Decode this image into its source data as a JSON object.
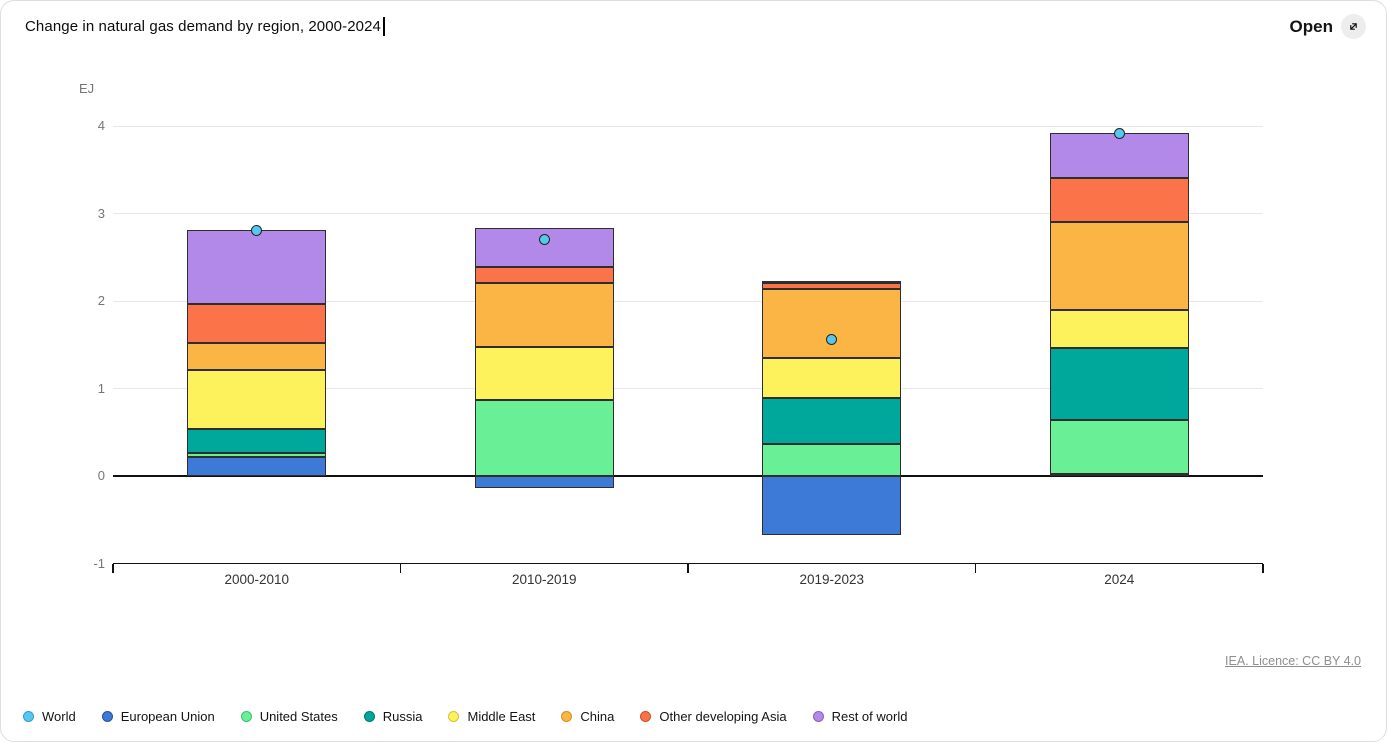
{
  "header": {
    "title": "Change in natural gas demand by region, 2000-2024",
    "open_label": "Open"
  },
  "footer": {
    "licence_label": "IEA. Licence: CC BY 4.0"
  },
  "chart_data": {
    "type": "bar",
    "stacked": true,
    "title": "Change in natural gas demand by region, 2000-2024",
    "ylabel": "EJ",
    "ylim": [
      -1,
      4
    ],
    "yticks": [
      -1,
      0,
      1,
      2,
      3,
      4
    ],
    "grid": "horizontal",
    "legend_position": "bottom",
    "categories": [
      "2000-2010",
      "2010-2019",
      "2019-2023",
      "2024"
    ],
    "series": [
      {
        "name": "European Union",
        "color": "#3D79D6",
        "border": "#24519E",
        "values": [
          0.22,
          -0.14,
          -0.67,
          0.02
        ]
      },
      {
        "name": "United States",
        "color": "#69F097",
        "border": "#3DBE6F",
        "values": [
          0.04,
          0.87,
          0.37,
          0.62
        ]
      },
      {
        "name": "Russia",
        "color": "#00A89B",
        "border": "#00776E",
        "values": [
          0.28,
          0.0,
          0.52,
          0.82
        ]
      },
      {
        "name": "Middle East",
        "color": "#FDF25C",
        "border": "#D1C23C",
        "values": [
          0.67,
          0.6,
          0.46,
          0.44
        ]
      },
      {
        "name": "China",
        "color": "#FBB545",
        "border": "#D08E21",
        "values": [
          0.31,
          0.74,
          0.79,
          1.0
        ]
      },
      {
        "name": "Other developing Asia",
        "color": "#FB7449",
        "border": "#C94E28",
        "values": [
          0.45,
          0.18,
          0.07,
          0.51
        ]
      },
      {
        "name": "Rest of world",
        "color": "#B289E9",
        "border": "#8A5FC4",
        "values": [
          0.84,
          0.45,
          0.02,
          0.51
        ]
      }
    ],
    "marker_series": {
      "name": "World",
      "color": "#56C8F0",
      "border": "#222222",
      "legend_border": "#2E9FD0",
      "values": [
        2.81,
        2.7,
        1.56,
        3.92
      ]
    }
  }
}
